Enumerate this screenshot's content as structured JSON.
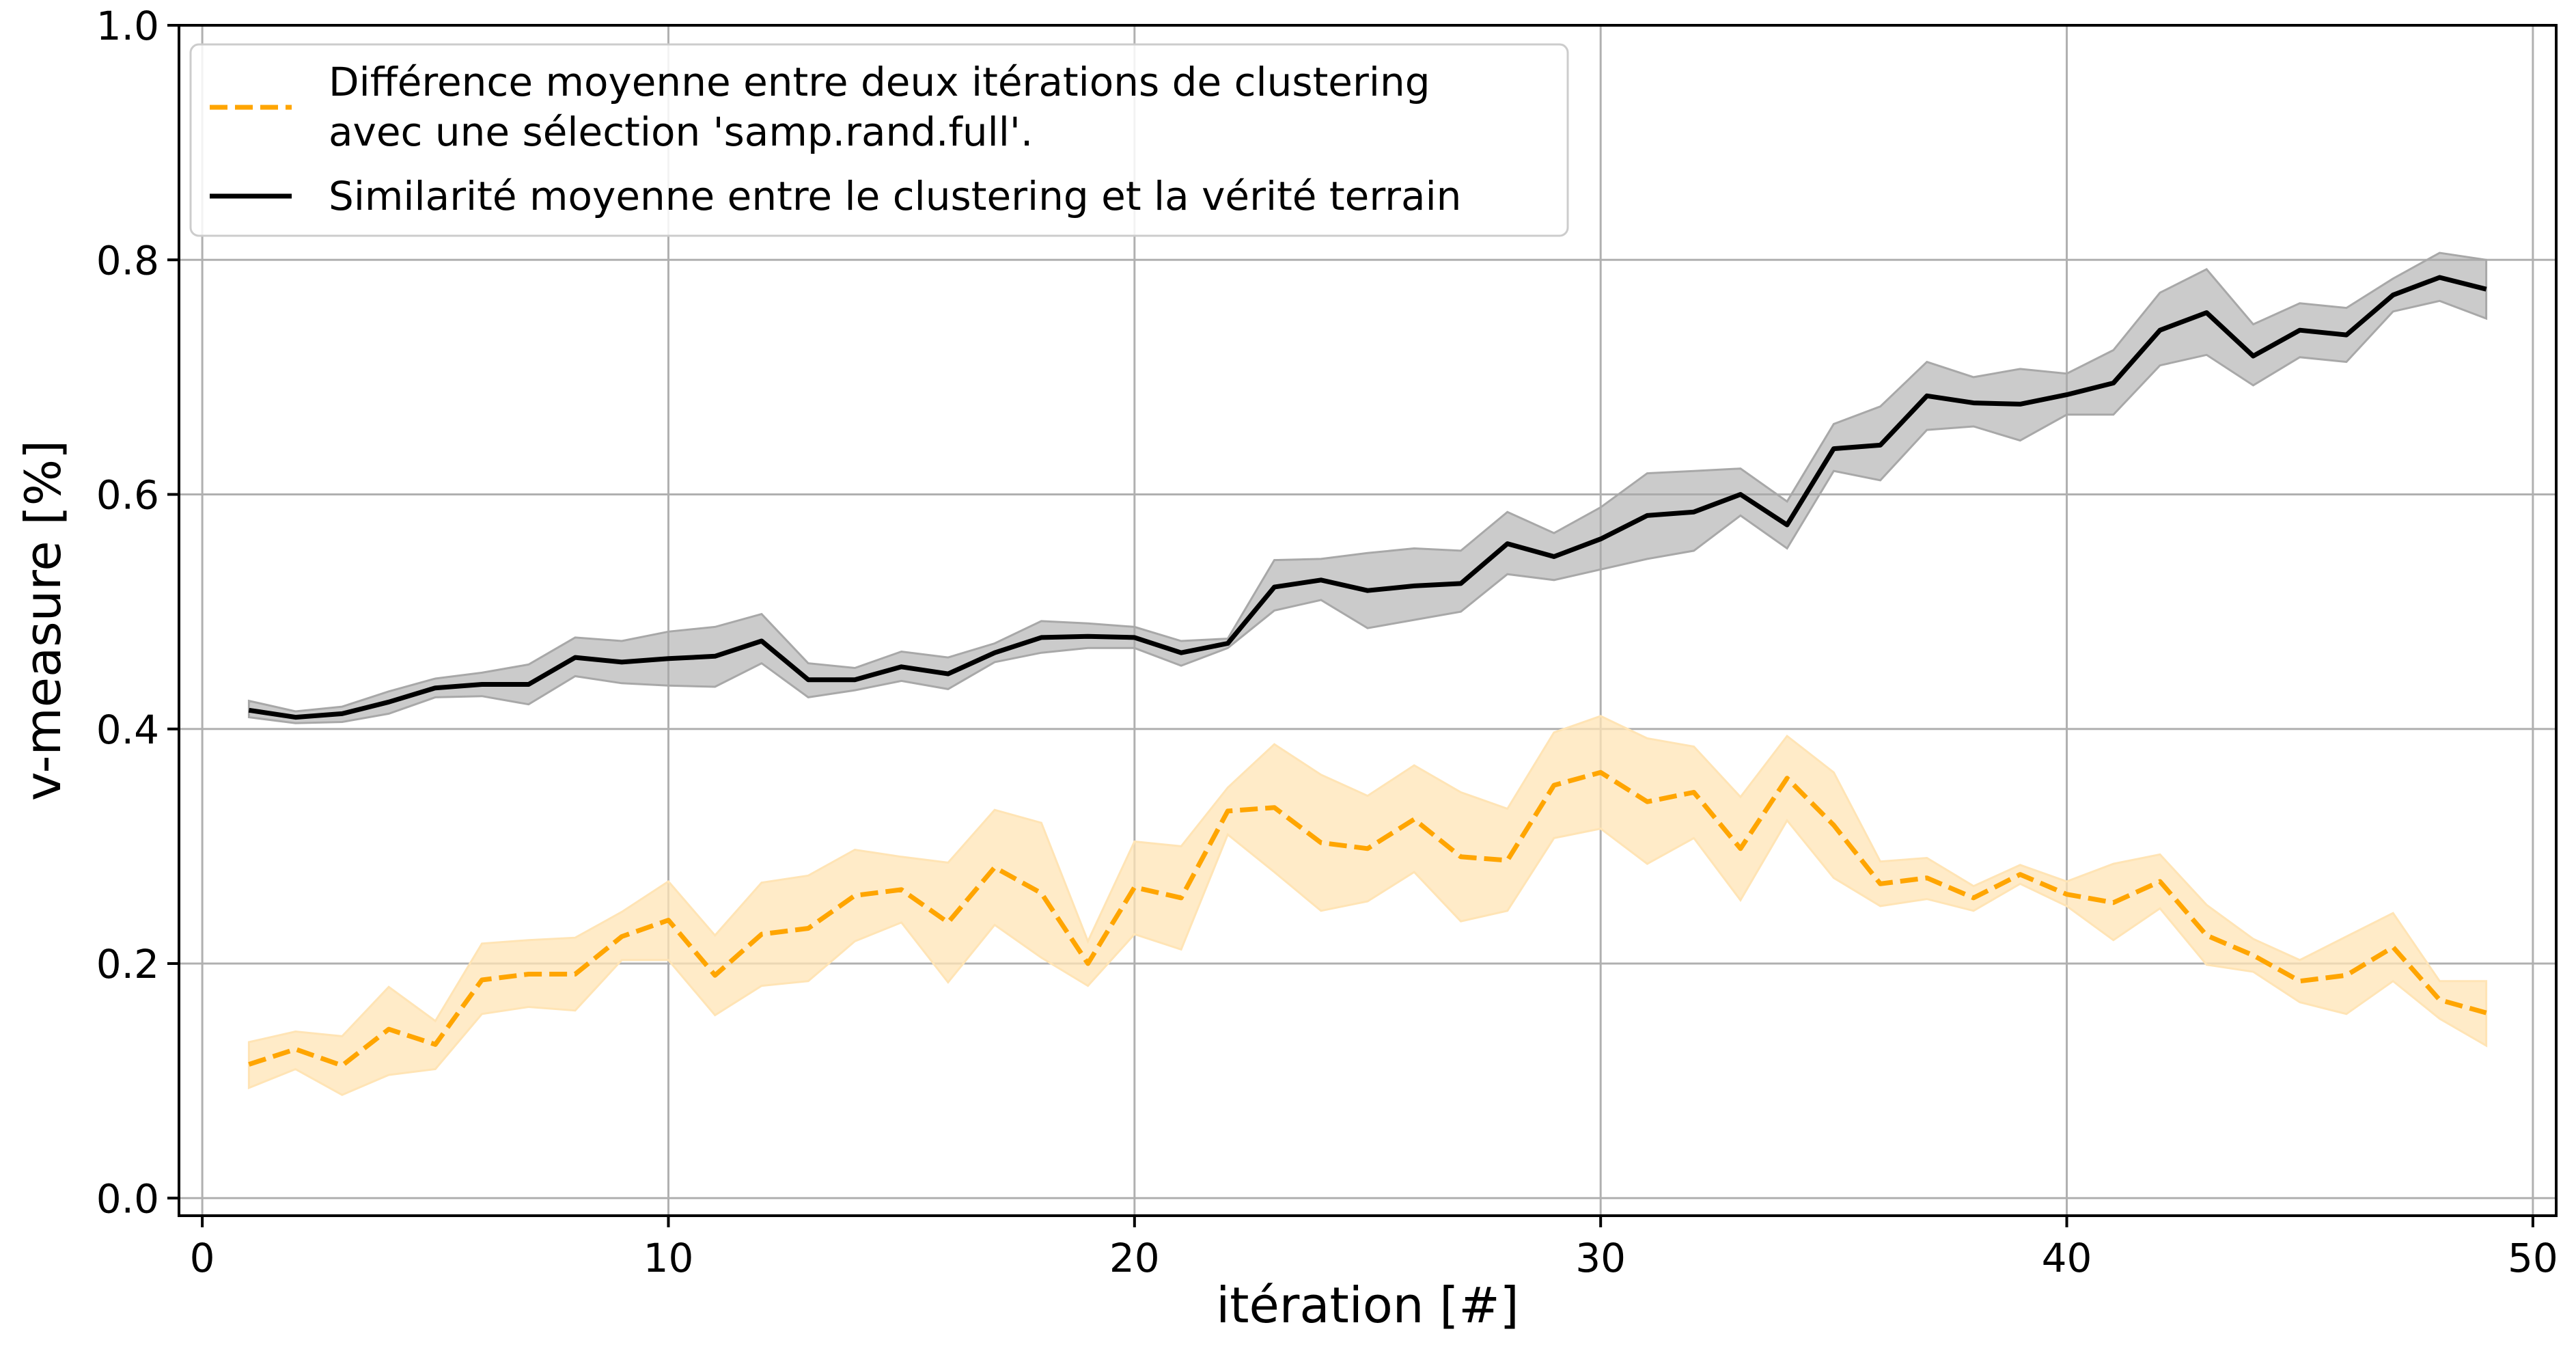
{
  "chart_data": {
    "type": "line",
    "xlabel": "itération [#]",
    "ylabel": "v-measure [%]",
    "xlim": [
      -0.5,
      50.5
    ],
    "ylim": [
      -0.015,
      1.0
    ],
    "x_ticks": [
      0,
      10,
      20,
      30,
      40,
      50
    ],
    "x_tick_labels": [
      "0",
      "10",
      "20",
      "30",
      "40",
      "50"
    ],
    "y_ticks": [
      0.0,
      0.2,
      0.4,
      0.6,
      0.8,
      1.0
    ],
    "y_tick_labels": [
      "0.0",
      "0.2",
      "0.4",
      "0.6",
      "0.8",
      "1.0"
    ],
    "grid": true,
    "legend_position": "top-left",
    "x": [
      1,
      2,
      3,
      4,
      5,
      6,
      7,
      8,
      9,
      10,
      11,
      12,
      13,
      14,
      15,
      16,
      17,
      18,
      19,
      20,
      21,
      22,
      23,
      24,
      25,
      26,
      27,
      28,
      29,
      30,
      31,
      32,
      33,
      34,
      35,
      36,
      37,
      38,
      39,
      40,
      41,
      42,
      43,
      44,
      45,
      46,
      47,
      48,
      49
    ],
    "series": [
      {
        "legend_lines": [
          "Différence moyenne entre deux itérations de clustering",
          "avec une sélection 'samp.rand.full'."
        ],
        "color": "#ffa500",
        "band_color": "#ffe4b5",
        "line_style": "dashed",
        "values": [
          0.114,
          0.127,
          0.113,
          0.144,
          0.131,
          0.186,
          0.191,
          0.191,
          0.223,
          0.237,
          0.19,
          0.225,
          0.23,
          0.258,
          0.263,
          0.235,
          0.282,
          0.26,
          0.2,
          0.265,
          0.256,
          0.33,
          0.333,
          0.303,
          0.298,
          0.323,
          0.291,
          0.288,
          0.352,
          0.363,
          0.338,
          0.346,
          0.298,
          0.358,
          0.318,
          0.268,
          0.273,
          0.256,
          0.276,
          0.259,
          0.252,
          0.27,
          0.224,
          0.207,
          0.185,
          0.19,
          0.214,
          0.169,
          0.158
        ],
        "lower": [
          0.094,
          0.11,
          0.088,
          0.105,
          0.11,
          0.157,
          0.163,
          0.16,
          0.203,
          0.203,
          0.156,
          0.181,
          0.185,
          0.219,
          0.235,
          0.184,
          0.233,
          0.205,
          0.181,
          0.225,
          0.212,
          0.31,
          0.278,
          0.245,
          0.253,
          0.278,
          0.236,
          0.245,
          0.307,
          0.315,
          0.285,
          0.307,
          0.254,
          0.322,
          0.273,
          0.249,
          0.255,
          0.245,
          0.268,
          0.249,
          0.22,
          0.247,
          0.199,
          0.193,
          0.167,
          0.157,
          0.185,
          0.153,
          0.13
        ],
        "upper": [
          0.133,
          0.142,
          0.138,
          0.18,
          0.151,
          0.217,
          0.22,
          0.222,
          0.244,
          0.27,
          0.224,
          0.269,
          0.275,
          0.297,
          0.291,
          0.286,
          0.331,
          0.32,
          0.219,
          0.304,
          0.3,
          0.35,
          0.387,
          0.361,
          0.343,
          0.369,
          0.346,
          0.332,
          0.397,
          0.411,
          0.392,
          0.385,
          0.342,
          0.394,
          0.363,
          0.287,
          0.29,
          0.266,
          0.284,
          0.27,
          0.285,
          0.293,
          0.25,
          0.221,
          0.203,
          0.223,
          0.243,
          0.185,
          0.185
        ]
      },
      {
        "legend_lines": [
          "Similarité moyenne entre le clustering et la vérité terrain"
        ],
        "color": "#000000",
        "band_color": "#a8a8a8",
        "line_style": "solid",
        "values": [
          0.416,
          0.41,
          0.413,
          0.423,
          0.435,
          0.438,
          0.438,
          0.461,
          0.457,
          0.46,
          0.462,
          0.475,
          0.442,
          0.442,
          0.453,
          0.447,
          0.465,
          0.478,
          0.479,
          0.478,
          0.465,
          0.473,
          0.521,
          0.527,
          0.518,
          0.522,
          0.524,
          0.558,
          0.547,
          0.562,
          0.582,
          0.585,
          0.6,
          0.574,
          0.639,
          0.642,
          0.684,
          0.678,
          0.677,
          0.685,
          0.695,
          0.74,
          0.755,
          0.718,
          0.74,
          0.736,
          0.77,
          0.785,
          0.775
        ],
        "lower": [
          0.41,
          0.405,
          0.406,
          0.413,
          0.427,
          0.428,
          0.421,
          0.445,
          0.439,
          0.437,
          0.436,
          0.456,
          0.427,
          0.433,
          0.441,
          0.434,
          0.457,
          0.465,
          0.469,
          0.469,
          0.454,
          0.469,
          0.501,
          0.51,
          0.486,
          0.493,
          0.5,
          0.532,
          0.527,
          0.536,
          0.545,
          0.552,
          0.582,
          0.554,
          0.62,
          0.612,
          0.655,
          0.658,
          0.646,
          0.668,
          0.668,
          0.71,
          0.719,
          0.693,
          0.717,
          0.713,
          0.756,
          0.765,
          0.75
        ],
        "upper": [
          0.424,
          0.415,
          0.419,
          0.432,
          0.443,
          0.448,
          0.455,
          0.478,
          0.475,
          0.483,
          0.487,
          0.498,
          0.456,
          0.452,
          0.466,
          0.461,
          0.473,
          0.492,
          0.49,
          0.487,
          0.475,
          0.477,
          0.544,
          0.545,
          0.55,
          0.554,
          0.552,
          0.585,
          0.567,
          0.589,
          0.618,
          0.62,
          0.622,
          0.594,
          0.66,
          0.675,
          0.713,
          0.7,
          0.707,
          0.703,
          0.723,
          0.772,
          0.792,
          0.745,
          0.763,
          0.759,
          0.784,
          0.806,
          0.8
        ]
      }
    ]
  }
}
